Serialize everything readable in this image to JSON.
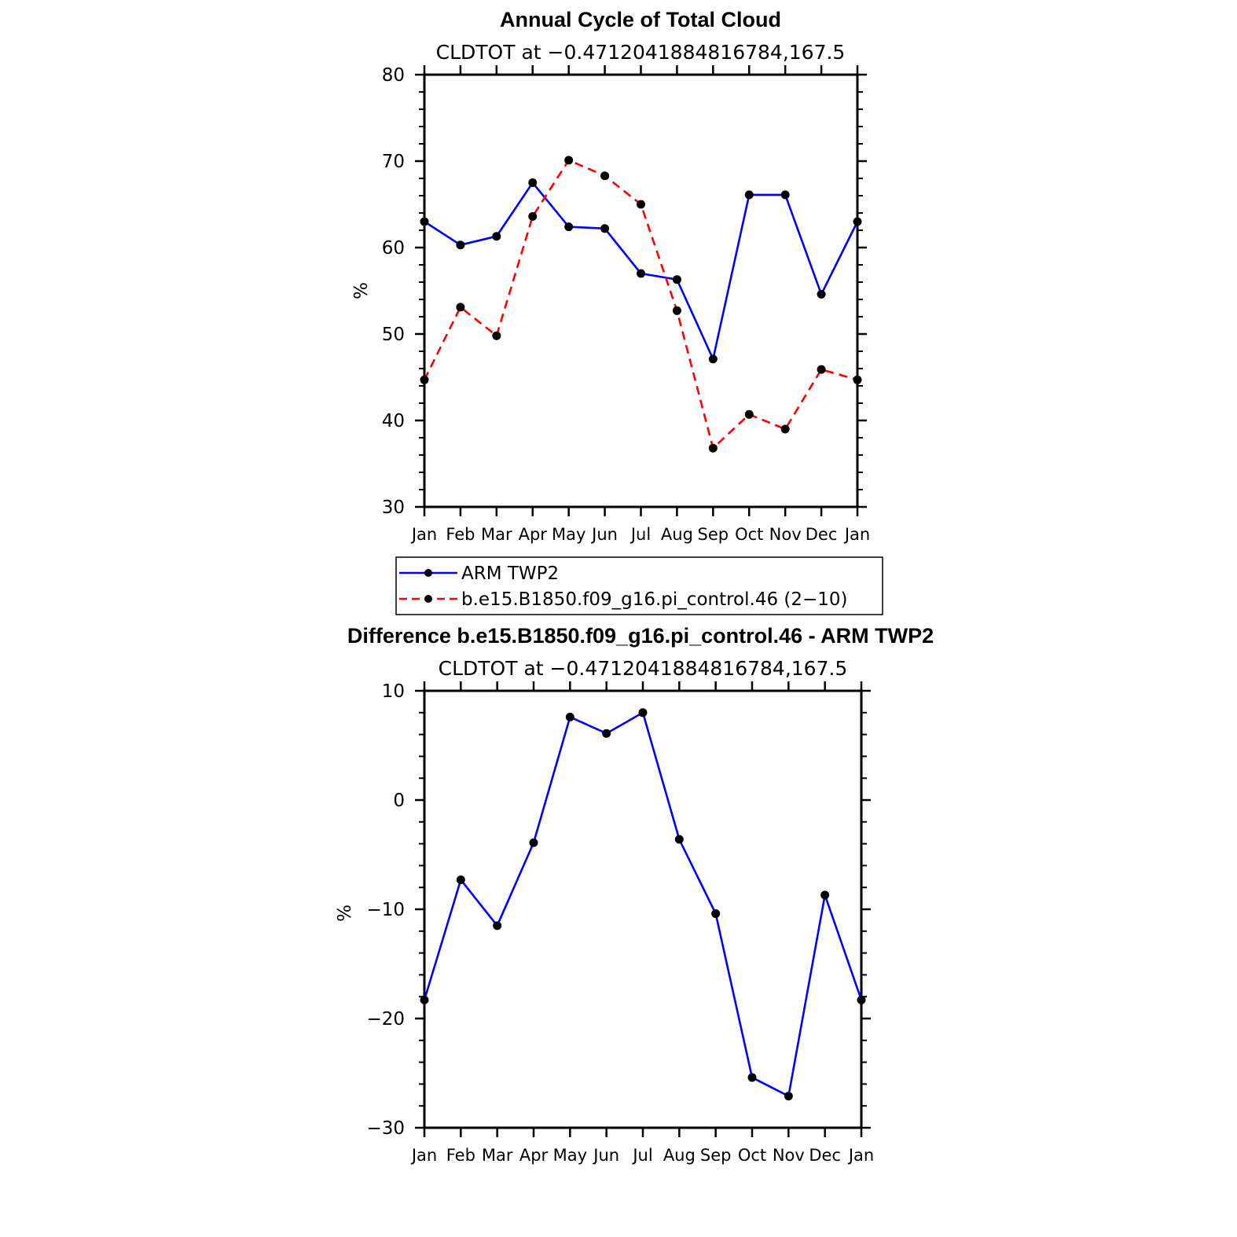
{
  "chart_data": [
    {
      "type": "line",
      "title": "Annual Cycle of Total Cloud",
      "subtitle": "CLDTOT at −0.4712041884816784,167.5",
      "ylabel": "%",
      "xlabel": "",
      "categories": [
        "Jan",
        "Feb",
        "Mar",
        "Apr",
        "May",
        "Jun",
        "Jul",
        "Aug",
        "Sep",
        "Oct",
        "Nov",
        "Dec",
        "Jan"
      ],
      "ylim": [
        30,
        80
      ],
      "yticks": [
        30,
        40,
        50,
        60,
        70,
        80
      ],
      "ytick_labels": [
        "30",
        "40",
        "50",
        "60",
        "70",
        "80"
      ],
      "grid": false,
      "legend_position": "bottom",
      "series": [
        {
          "name": "ARM TWP2",
          "color": "#0000ff",
          "dash": "solid",
          "values": [
            63.0,
            60.3,
            61.3,
            67.5,
            62.4,
            62.2,
            57.0,
            56.3,
            47.1,
            66.1,
            66.1,
            54.6,
            63.0
          ]
        },
        {
          "name": "b.e15.B1850.f09_g16.pi_control.46 (2−10)",
          "color": "#ff0000",
          "dash": "dashed",
          "values": [
            44.7,
            53.1,
            49.8,
            63.6,
            70.1,
            68.3,
            65.0,
            52.7,
            36.8,
            40.7,
            39.0,
            45.9,
            44.7
          ]
        }
      ]
    },
    {
      "type": "line",
      "title": "Difference b.e15.B1850.f09_g16.pi_control.46 - ARM TWP2",
      "subtitle": "CLDTOT at −0.4712041884816784,167.5",
      "ylabel": "%",
      "xlabel": "",
      "categories": [
        "Jan",
        "Feb",
        "Mar",
        "Apr",
        "May",
        "Jun",
        "Jul",
        "Aug",
        "Sep",
        "Oct",
        "Nov",
        "Dec",
        "Jan"
      ],
      "ylim": [
        -30,
        10
      ],
      "yticks": [
        -30,
        -20,
        -10,
        0,
        10
      ],
      "ytick_labels": [
        "−30",
        "−20",
        "−10",
        "0",
        "10"
      ],
      "grid": false,
      "series": [
        {
          "name": "difference",
          "color": "#0000ff",
          "dash": "solid",
          "values": [
            -18.3,
            -7.3,
            -11.5,
            -3.9,
            7.6,
            6.1,
            8.0,
            -3.6,
            -10.4,
            -25.4,
            -27.1,
            -8.7,
            -18.3
          ]
        }
      ]
    }
  ],
  "legend": {
    "items": [
      "ARM TWP2",
      "b.e15.B1850.f09_g16.pi_control.46 (2−10)"
    ],
    "colors": [
      "#0000ff",
      "#ff0000"
    ]
  }
}
